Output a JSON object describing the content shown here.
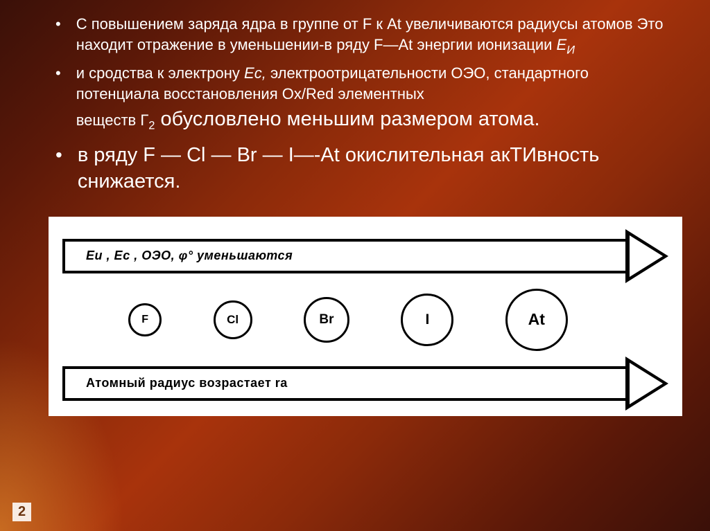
{
  "bullets": {
    "first": {
      "line1": "С повышением заряда ядра в группе от F к At увеличиваются радиусы атомов Это находит отражение в уменьшении-в ряду F—At энергии ионизации ",
      "ei": "Е",
      "ei_sub": "И"
    },
    "second": {
      "line1": "и сродства к электрону ",
      "ec": "Ес,",
      "line2": " электроотрицательности ОЭО, стандартного потенциала восстановления Ox/Red элементных",
      "line3_a": "веществ Г",
      "sub2": "2",
      "line3_b": " обусловлено меньшим размером атома."
    },
    "third": "в ряду F — Cl — Br — I—-At окислительная акТИвность снижается."
  },
  "diagram": {
    "top_arrow_label": "Еи , Ес , ОЭО, φ°   уменьшаются",
    "bottom_arrow_label": "Атомный радиус возрастает   rа",
    "elements": [
      {
        "label": "F",
        "size": 48,
        "font": 16
      },
      {
        "label": "Cl",
        "size": 56,
        "font": 17
      },
      {
        "label": "Br",
        "size": 66,
        "font": 19
      },
      {
        "label": "I",
        "size": 76,
        "font": 21
      },
      {
        "label": "At",
        "size": 90,
        "font": 23
      }
    ],
    "border_color": "#000000",
    "background": "#ffffff"
  },
  "page_number": "2",
  "colors": {
    "text": "#ffffff",
    "bg_dark": "#3a1008",
    "bg_mid": "#a8330c"
  }
}
